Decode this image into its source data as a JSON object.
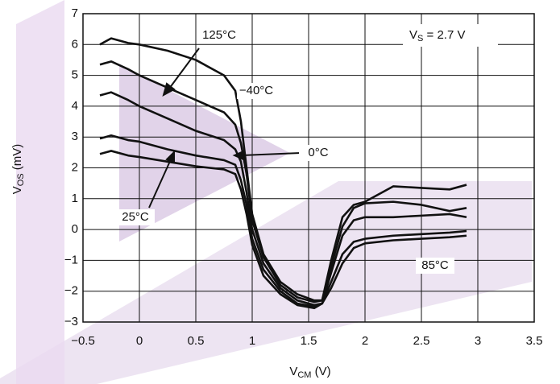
{
  "chart_data": {
    "type": "line",
    "x_label": [
      "V",
      "CM",
      " (V)"
    ],
    "y_label": [
      "V",
      "OS",
      " (mV)"
    ],
    "annotations": [
      "125°C",
      "−40°C",
      "0°C",
      "25°C",
      "85°C"
    ],
    "supply_label": [
      "V",
      "S",
      " = 2.7 V"
    ],
    "x": [
      -0.35,
      -0.25,
      -0.1,
      0,
      0.25,
      0.5,
      0.75,
      0.85,
      0.9,
      0.95,
      1.0,
      1.1,
      1.25,
      1.4,
      1.55,
      1.62,
      1.7,
      1.8,
      1.9,
      2.0,
      2.25,
      2.5,
      2.75,
      2.9
    ],
    "series": [
      {
        "color": "#111111",
        "values": [
          6.0,
          6.2,
          6.05,
          6.0,
          5.8,
          5.5,
          5.0,
          4.5,
          3.5,
          2.0,
          0.5,
          -0.8,
          -1.7,
          -2.1,
          -2.3,
          -2.3,
          -1.0,
          0.4,
          0.8,
          0.9,
          1.4,
          1.35,
          1.3,
          1.45
        ]
      },
      {
        "color": "#111111",
        "values": [
          5.35,
          5.45,
          5.2,
          5.0,
          4.6,
          4.2,
          3.8,
          3.4,
          2.8,
          1.8,
          0.3,
          -0.9,
          -1.8,
          -2.2,
          -2.35,
          -2.3,
          -1.2,
          0.1,
          0.7,
          0.85,
          0.9,
          0.8,
          0.6,
          0.7
        ]
      },
      {
        "color": "#111111",
        "values": [
          4.35,
          4.45,
          4.2,
          4.0,
          3.6,
          3.2,
          2.9,
          2.6,
          2.2,
          1.2,
          0,
          -1.1,
          -1.9,
          -2.3,
          -2.45,
          -2.4,
          -1.4,
          -0.2,
          0.3,
          0.4,
          0.4,
          0.45,
          0.5,
          0.4
        ]
      },
      {
        "color": "#111111",
        "values": [
          2.95,
          3.05,
          2.9,
          2.85,
          2.6,
          2.4,
          2.25,
          2.1,
          1.6,
          0.8,
          -0.3,
          -1.3,
          -2.0,
          -2.4,
          -2.5,
          -2.4,
          -1.7,
          -0.8,
          -0.4,
          -0.3,
          -0.2,
          -0.15,
          -0.1,
          -0.05
        ]
      },
      {
        "color": "#111111",
        "values": [
          2.45,
          2.55,
          2.4,
          2.35,
          2.2,
          2.05,
          1.95,
          1.8,
          1.3,
          0.5,
          -0.5,
          -1.5,
          -2.1,
          -2.45,
          -2.55,
          -2.4,
          -1.9,
          -1.1,
          -0.6,
          -0.45,
          -0.35,
          -0.3,
          -0.25,
          -0.2
        ]
      }
    ],
    "xlim": [
      -0.5,
      3.5
    ],
    "xticks": [
      {
        "value": -0.5,
        "label": "−0.5"
      },
      0,
      0.5,
      1,
      1.5,
      2,
      2.5,
      3,
      3.5
    ],
    "ylim": [
      -3,
      7
    ],
    "yticks": [
      {
        "value": -3,
        "label": "−3"
      },
      {
        "value": -2,
        "label": "−2"
      },
      {
        "value": -1,
        "label": "−1"
      },
      0,
      1,
      2,
      3,
      4,
      5,
      6,
      7
    ],
    "grid": true
  }
}
